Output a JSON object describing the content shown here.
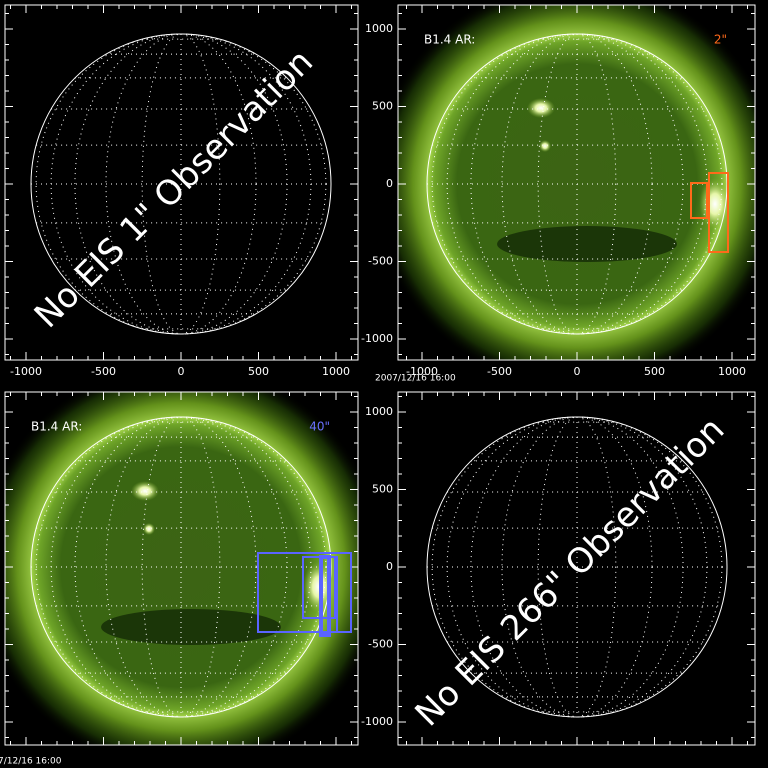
{
  "timestamp_center": "2007/12/16 16:00",
  "timestamp_bottom": "7/12/16 16:00",
  "panels": [
    {
      "overlay": "No EIS 1\" Observation",
      "x_ticks": [
        -1000,
        -500,
        0,
        500,
        1000
      ]
    },
    {
      "label": "B1.4 AR:",
      "scale": "2\"",
      "x_ticks": [
        -1000,
        -500,
        0,
        500,
        1000
      ],
      "y_ticks": [
        1000,
        500,
        0,
        -500,
        -1000
      ]
    },
    {
      "label": "B1.4 AR:",
      "scale": "40\""
    },
    {
      "overlay": "No EIS 266\" Observation",
      "y_ticks": [
        1000,
        500,
        0,
        -500,
        -1000
      ]
    }
  ]
}
